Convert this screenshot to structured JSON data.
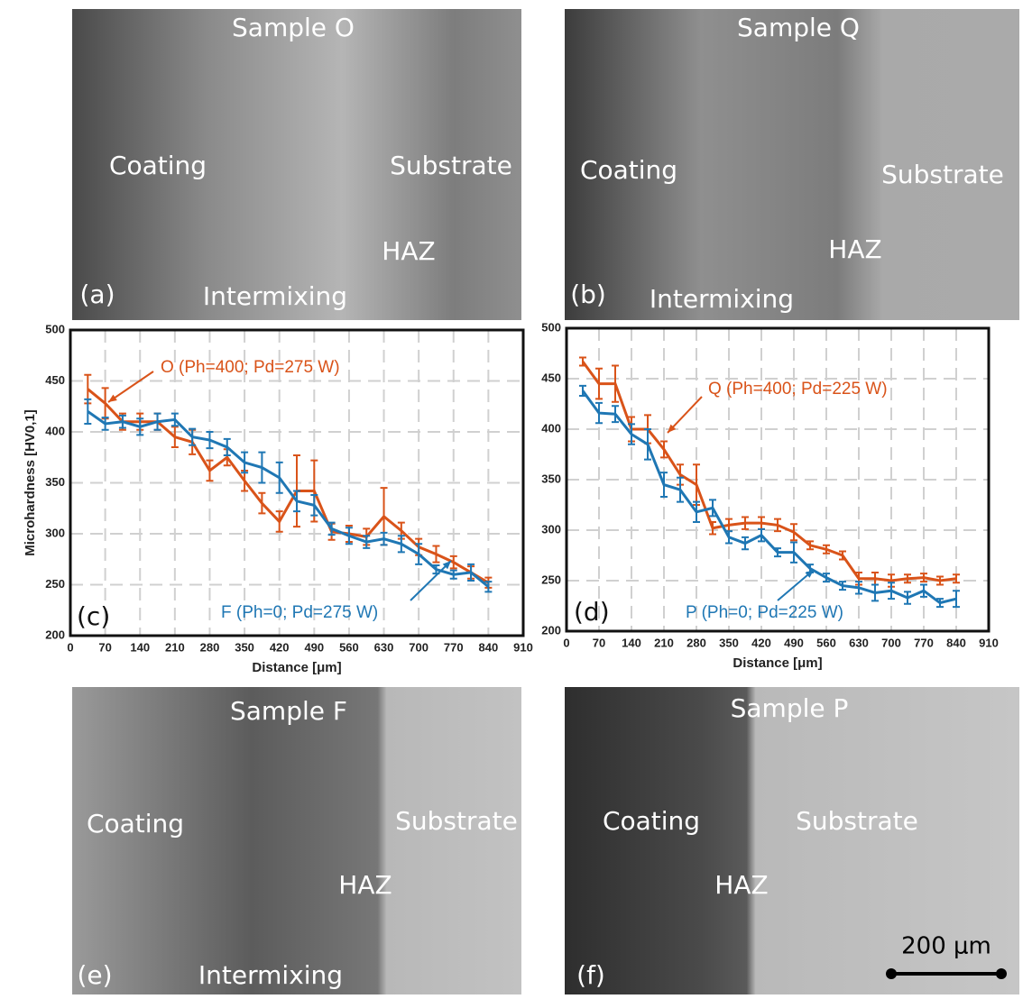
{
  "chart_data": [
    {
      "type": "line",
      "xlabel": "Distance [μm]",
      "ylabel": "Microhardness [HV0,1]",
      "xlim": [
        0,
        910
      ],
      "xticks": [
        0,
        70,
        140,
        210,
        280,
        350,
        420,
        490,
        560,
        630,
        700,
        770,
        840,
        910
      ],
      "ylim": [
        200,
        500
      ],
      "yticks": [
        200,
        250,
        300,
        350,
        400,
        450,
        500
      ],
      "grid": true,
      "x": [
        35,
        70,
        105,
        140,
        175,
        210,
        245,
        280,
        315,
        350,
        385,
        420,
        455,
        490,
        525,
        560,
        595,
        630,
        665,
        700,
        735,
        770,
        805,
        840
      ],
      "series": [
        {
          "name": "O (Ph=400; Pd=275 W)",
          "color": "#d95319",
          "values": [
            442,
            428,
            410,
            410,
            410,
            395,
            390,
            362,
            375,
            352,
            330,
            312,
            342,
            342,
            302,
            300,
            297,
            317,
            303,
            287,
            280,
            272,
            262,
            252
          ],
          "errors": [
            14,
            15,
            8,
            8,
            8,
            10,
            12,
            10,
            8,
            10,
            10,
            10,
            35,
            30,
            8,
            8,
            8,
            28,
            8,
            8,
            8,
            6,
            6,
            5
          ]
        },
        {
          "name": "F (Ph=0; Pd=275 W)",
          "color": "#1f77b4",
          "values": [
            420,
            408,
            410,
            405,
            410,
            412,
            395,
            392,
            385,
            370,
            365,
            355,
            332,
            328,
            305,
            298,
            292,
            295,
            290,
            280,
            265,
            260,
            262,
            248
          ],
          "errors": [
            12,
            6,
            6,
            8,
            8,
            6,
            8,
            8,
            8,
            10,
            15,
            15,
            10,
            10,
            6,
            8,
            6,
            6,
            8,
            10,
            4,
            4,
            8,
            5
          ]
        }
      ],
      "annotations": [
        "(c)"
      ]
    },
    {
      "type": "line",
      "xlabel": "Distance [μm]",
      "ylabel": "Microhardness [HV0,1]",
      "xlim": [
        0,
        910
      ],
      "xticks": [
        0,
        70,
        140,
        210,
        280,
        350,
        420,
        490,
        560,
        630,
        700,
        770,
        840,
        910
      ],
      "ylim": [
        200,
        500
      ],
      "yticks": [
        200,
        250,
        300,
        350,
        400,
        450,
        500
      ],
      "grid": true,
      "x": [
        35,
        70,
        105,
        140,
        175,
        210,
        245,
        280,
        315,
        350,
        385,
        420,
        455,
        490,
        525,
        560,
        595,
        630,
        665,
        700,
        735,
        770,
        805,
        840
      ],
      "series": [
        {
          "name": "Q (Ph=400; Pd=225 W)",
          "color": "#d95319",
          "values": [
            467,
            445,
            445,
            400,
            400,
            380,
            355,
            345,
            302,
            305,
            307,
            307,
            305,
            298,
            285,
            281,
            275,
            252,
            252,
            250,
            252,
            253,
            250,
            252
          ],
          "errors": [
            4,
            15,
            18,
            12,
            14,
            8,
            10,
            20,
            6,
            6,
            6,
            6,
            6,
            8,
            4,
            4,
            4,
            6,
            6,
            6,
            4,
            4,
            4,
            4
          ]
        },
        {
          "name": "P (Ph=0; Pd=225 W)",
          "color": "#1f77b4",
          "values": [
            438,
            416,
            415,
            395,
            385,
            345,
            340,
            318,
            322,
            293,
            287,
            295,
            278,
            278,
            262,
            253,
            245,
            243,
            238,
            240,
            233,
            240,
            228,
            232
          ],
          "errors": [
            5,
            10,
            8,
            10,
            15,
            12,
            12,
            10,
            8,
            6,
            6,
            6,
            4,
            10,
            4,
            4,
            4,
            6,
            8,
            8,
            6,
            6,
            4,
            8
          ]
        }
      ],
      "annotations": [
        "(d)"
      ]
    }
  ],
  "micrographs": [
    {
      "title": "Sample O",
      "panel": "(a)",
      "regions": [
        "Coating",
        "Substrate",
        "HAZ",
        "Intermixing"
      ]
    },
    {
      "title": "Sample Q",
      "panel": "(b)",
      "regions": [
        "Coating",
        "Substrate",
        "HAZ",
        "Intermixing"
      ]
    },
    {
      "title": "Sample F",
      "panel": "(e)",
      "regions": [
        "Coating",
        "Substrate",
        "HAZ",
        "Intermixing"
      ]
    },
    {
      "title": "Sample P",
      "panel": "(f)",
      "regions": [
        "Coating",
        "Substrate",
        "HAZ"
      ],
      "scale_bar": "200 μm"
    }
  ]
}
